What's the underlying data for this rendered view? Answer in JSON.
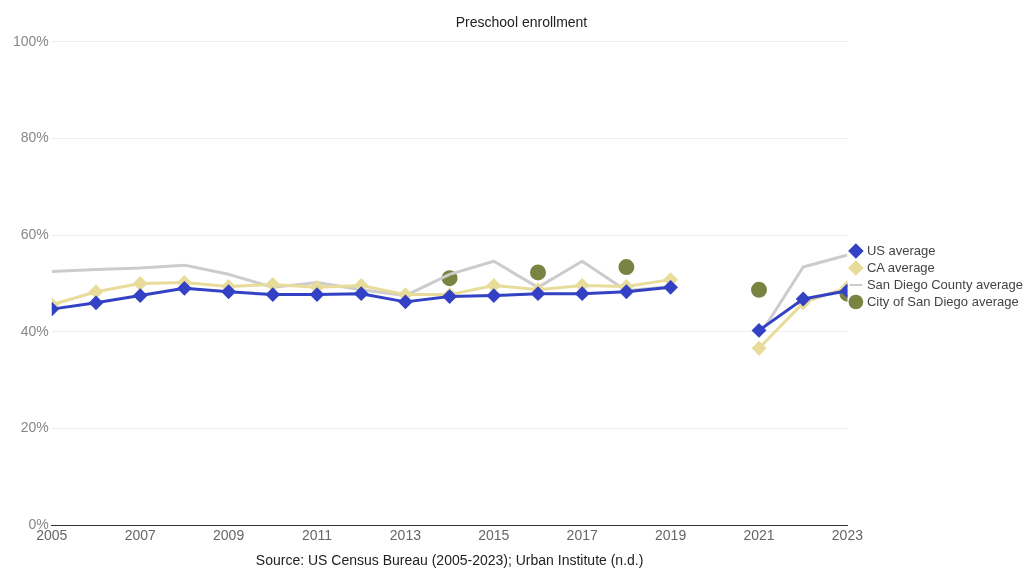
{
  "chart_data": {
    "type": "line",
    "title": "Preschool enrollment",
    "annotations": [
      "Source: US Census Bureau (2005-2023); Urban Institute (n.d.)"
    ],
    "x": [
      2005,
      2006,
      2007,
      2008,
      2009,
      2010,
      2011,
      2012,
      2013,
      2014,
      2015,
      2016,
      2017,
      2018,
      2019,
      2020,
      2021,
      2022,
      2023
    ],
    "xlim": [
      2005,
      2023
    ],
    "xticks": [
      2005,
      2007,
      2009,
      2011,
      2013,
      2015,
      2017,
      2019,
      2021,
      2023
    ],
    "ylim": [
      0,
      100
    ],
    "yticks": [
      {
        "value": 0,
        "label": "0%"
      },
      {
        "value": 20,
        "label": "20%"
      },
      {
        "value": 40,
        "label": "40%"
      },
      {
        "value": 60,
        "label": "60%"
      },
      {
        "value": 80,
        "label": "80%"
      },
      {
        "value": 100,
        "label": "100%"
      }
    ],
    "grid": "y",
    "legend": "right",
    "series": [
      {
        "name": "City of San Diego average",
        "type": "scatter",
        "marker": "circle",
        "color": "#7a8442",
        "values": [
          null,
          null,
          null,
          null,
          null,
          null,
          null,
          null,
          null,
          51.1,
          null,
          52.3,
          null,
          53.4,
          null,
          null,
          48.7,
          null,
          47.9
        ]
      },
      {
        "name": "San Diego County average",
        "type": "line",
        "marker": "none",
        "color": "#cccccc",
        "values": [
          52.5,
          52.9,
          53.2,
          53.8,
          51.9,
          49.2,
          50.2,
          48.7,
          47.5,
          51.9,
          54.6,
          49.2,
          54.6,
          48.5,
          49.4,
          null,
          39.1,
          53.4,
          55.9
        ]
      },
      {
        "name": "CA average",
        "type": "line",
        "marker": "diamond",
        "color": "#e8dc9a",
        "values": [
          45.6,
          48.3,
          50.0,
          50.2,
          49.4,
          49.8,
          49.2,
          49.6,
          47.7,
          47.7,
          49.6,
          48.7,
          49.6,
          49.4,
          50.8,
          null,
          36.6,
          46.0,
          49.2
        ]
      },
      {
        "name": "US average",
        "type": "line",
        "marker": "diamond",
        "color": "#3341c4",
        "values": [
          44.7,
          46.0,
          47.5,
          49.0,
          48.3,
          47.7,
          47.7,
          47.9,
          46.2,
          47.3,
          47.5,
          47.9,
          47.9,
          48.3,
          49.2,
          null,
          40.3,
          46.8,
          48.5
        ]
      }
    ]
  }
}
